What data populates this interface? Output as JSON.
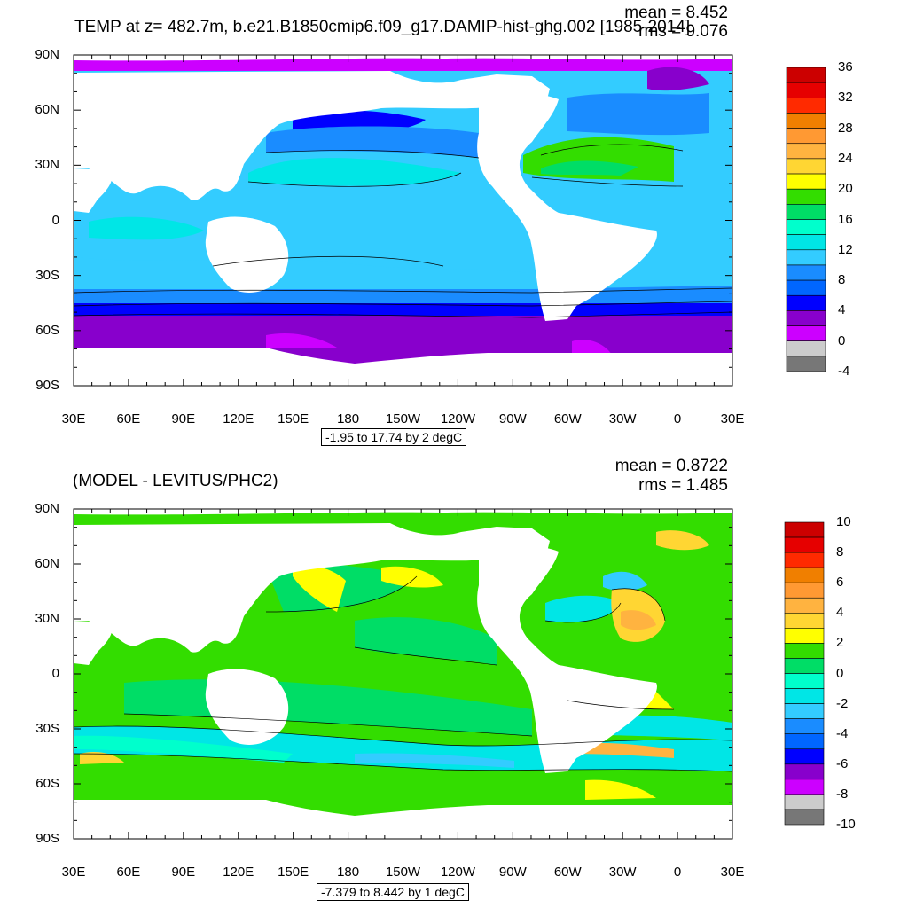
{
  "panel1": {
    "title": "TEMP at z= 482.7m, b.e21.B1850cmip6.f09_g17.DAMIP-hist-ghg.002 [1985-2014]",
    "mean_label": "mean = 8.452",
    "rms_label": "rms = 9.076",
    "range_label": "-1.95 to 17.74 by 2 degC",
    "colorbar": {
      "levels": [
        "36",
        "32",
        "28",
        "24",
        "20",
        "16",
        "12",
        "8",
        "4",
        "0",
        "-4"
      ],
      "colors": [
        "#cc0000",
        "#e60000",
        "#ff2a00",
        "#f07f00",
        "#ff9933",
        "#ffb340",
        "#ffd633",
        "#ffff00",
        "#33dd00",
        "#00dd66",
        "#00ffcc",
        "#00e6e6",
        "#33ccff",
        "#1a8cff",
        "#0066ff",
        "#0000ff",
        "#8800cc",
        "#cc00ff",
        "#cccccc",
        "#777777"
      ]
    }
  },
  "panel2": {
    "title": "(MODEL - LEVITUS/PHC2)",
    "mean_label": "mean = 0.8722",
    "rms_label": "rms = 1.485",
    "range_label": "-7.379 to 8.442 by 1 degC",
    "colorbar": {
      "levels": [
        "10",
        "8",
        "6",
        "4",
        "2",
        "0",
        "-2",
        "-4",
        "-6",
        "-8",
        "-10"
      ],
      "colors": [
        "#cc0000",
        "#e60000",
        "#ff2a00",
        "#f07f00",
        "#ff9933",
        "#ffb340",
        "#ffd633",
        "#ffff00",
        "#33dd00",
        "#00dd66",
        "#00ffcc",
        "#00e6e6",
        "#33ccff",
        "#1a8cff",
        "#0066ff",
        "#0000ff",
        "#8800cc",
        "#cc00ff",
        "#cccccc",
        "#777777"
      ]
    }
  },
  "axes": {
    "lat_labels": [
      "90N",
      "60N",
      "30N",
      "0",
      "30S",
      "60S",
      "90S"
    ],
    "lon_labels": [
      "30E",
      "60E",
      "90E",
      "120E",
      "150E",
      "180",
      "150W",
      "120W",
      "90W",
      "60W",
      "30W",
      "0",
      "30E"
    ]
  }
}
